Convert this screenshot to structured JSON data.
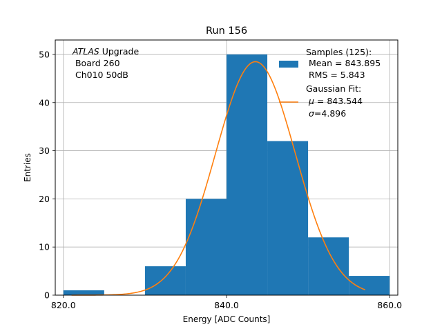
{
  "chart_data": {
    "type": "bar",
    "title": "Run 156",
    "xlabel": "Energy [ADC Counts]",
    "ylabel": "Entries",
    "xlim": [
      819.0,
      861.0
    ],
    "ylim": [
      0,
      53
    ],
    "grid": true,
    "x_ticks": [
      {
        "value": 820,
        "label": "820.0"
      },
      {
        "value": 840,
        "label": "840.0"
      },
      {
        "value": 860,
        "label": "860.0"
      }
    ],
    "y_ticks": [
      {
        "value": 0,
        "label": "0"
      },
      {
        "value": 10,
        "label": "10"
      },
      {
        "value": 20,
        "label": "20"
      },
      {
        "value": 30,
        "label": "30"
      },
      {
        "value": 40,
        "label": "40"
      },
      {
        "value": 50,
        "label": "50"
      }
    ],
    "histogram": {
      "bin_edges": [
        820,
        825,
        830,
        835,
        840,
        845,
        850,
        855,
        860
      ],
      "counts": [
        1,
        0,
        6,
        20,
        50,
        32,
        12,
        4
      ],
      "color": "#1f77b4"
    },
    "fit": {
      "type": "gaussian",
      "mu": 843.544,
      "sigma": 4.896,
      "amplitude": 48.5,
      "x_range": [
        821,
        857
      ],
      "color": "#ff7f0e"
    },
    "annotation": {
      "line1_italic": "ATLAS",
      "line1_rest": " Upgrade",
      "line2": " Board 260",
      "line3": " Ch010 50dB"
    },
    "legend": {
      "placement": "top-right",
      "samples": {
        "line1": "Samples (125):",
        "line2": " Mean = 843.895",
        "line3": " RMS = 5.843"
      },
      "fit": {
        "line1": "Gaussian Fit:",
        "line2_sym": "μ",
        "line2_rest": " = 843.544",
        "line3_sym": "σ",
        "line3_rest": "=4.896"
      }
    }
  }
}
